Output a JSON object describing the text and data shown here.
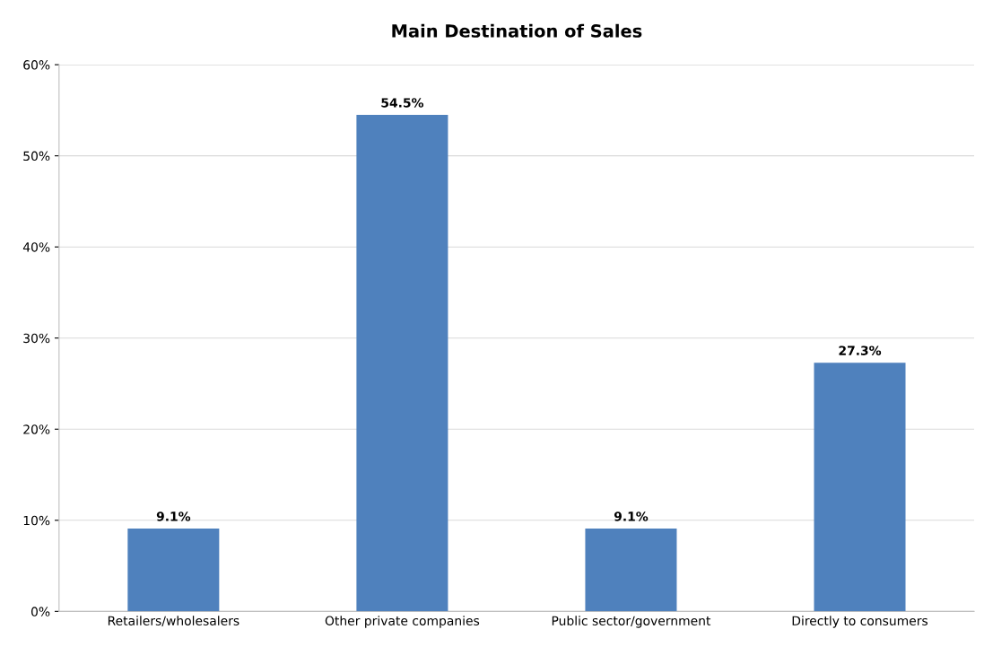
{
  "chart_data": {
    "type": "bar",
    "title": "Main Destination of Sales",
    "categories": [
      "Retailers/wholesalers",
      "Other private companies",
      "Public sector/government",
      "Directly to consumers"
    ],
    "values": [
      9.1,
      54.5,
      9.1,
      27.3
    ],
    "value_labels": [
      "9.1%",
      "54.5%",
      "9.1%",
      "27.3%"
    ],
    "color": "#4f81bd",
    "ylim": [
      0,
      60
    ],
    "yticks": [
      {
        "value": 0,
        "label": "0%"
      },
      {
        "value": 10,
        "label": "10%"
      },
      {
        "value": 20,
        "label": "20%"
      },
      {
        "value": 30,
        "label": "30%"
      },
      {
        "value": 40,
        "label": "40%"
      },
      {
        "value": 50,
        "label": "50%"
      },
      {
        "value": 60,
        "label": "60%"
      }
    ],
    "grid": "y"
  }
}
